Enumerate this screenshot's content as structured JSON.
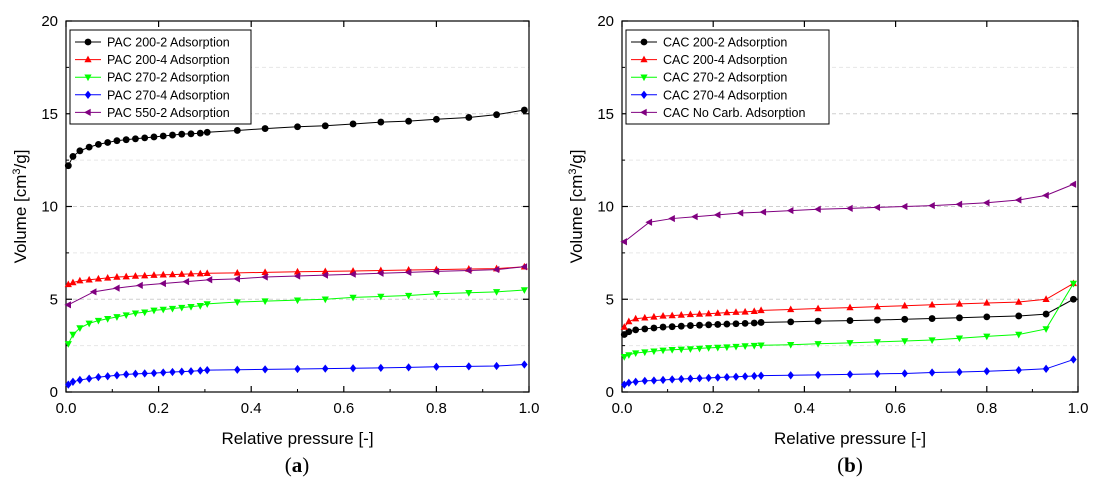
{
  "chart_data": [
    {
      "type": "line",
      "panel_label": "a",
      "xlabel": "Relative pressure [-]",
      "ylabel_main": "Volume [cm",
      "ylabel_sup": "3",
      "ylabel_tail": "/g]",
      "xlim": [
        0,
        1.0
      ],
      "ylim": [
        0,
        20
      ],
      "x_ticks": [
        "0.0",
        "0.2",
        "0.4",
        "0.6",
        "0.8",
        "1.0"
      ],
      "y_ticks": [
        "0",
        "5",
        "10",
        "15",
        "20"
      ],
      "grid": "horizontal dashed",
      "legend_position": "top-left",
      "series": [
        {
          "name": "PAC 200-2 Adsorption",
          "color": "#000000",
          "marker": "circle",
          "x": [
            0.005,
            0.015,
            0.03,
            0.05,
            0.07,
            0.09,
            0.11,
            0.13,
            0.15,
            0.17,
            0.19,
            0.21,
            0.23,
            0.25,
            0.27,
            0.29,
            0.305,
            0.37,
            0.43,
            0.5,
            0.56,
            0.62,
            0.68,
            0.74,
            0.8,
            0.87,
            0.93,
            0.99
          ],
          "y": [
            12.2,
            12.7,
            13.0,
            13.2,
            13.35,
            13.45,
            13.55,
            13.6,
            13.65,
            13.7,
            13.75,
            13.8,
            13.85,
            13.9,
            13.92,
            13.95,
            14.0,
            14.1,
            14.2,
            14.3,
            14.35,
            14.45,
            14.55,
            14.6,
            14.7,
            14.8,
            14.95,
            15.2
          ]
        },
        {
          "name": "PAC 200-4 Adsorption",
          "color": "#ff0000",
          "marker": "triangle-up",
          "x": [
            0.005,
            0.015,
            0.03,
            0.05,
            0.07,
            0.09,
            0.11,
            0.13,
            0.15,
            0.17,
            0.19,
            0.21,
            0.23,
            0.25,
            0.27,
            0.29,
            0.305,
            0.37,
            0.43,
            0.5,
            0.56,
            0.62,
            0.68,
            0.74,
            0.8,
            0.87,
            0.93,
            0.99
          ],
          "y": [
            5.8,
            5.9,
            6.0,
            6.05,
            6.1,
            6.15,
            6.2,
            6.22,
            6.25,
            6.27,
            6.3,
            6.32,
            6.33,
            6.35,
            6.37,
            6.38,
            6.4,
            6.42,
            6.45,
            6.48,
            6.5,
            6.52,
            6.55,
            6.58,
            6.6,
            6.63,
            6.65,
            6.75
          ]
        },
        {
          "name": "PAC 270-2 Adsorption",
          "color": "#00ff00",
          "marker": "triangle-down",
          "x": [
            0.005,
            0.015,
            0.03,
            0.05,
            0.07,
            0.09,
            0.11,
            0.13,
            0.15,
            0.17,
            0.19,
            0.21,
            0.23,
            0.25,
            0.27,
            0.29,
            0.305,
            0.37,
            0.43,
            0.5,
            0.56,
            0.62,
            0.68,
            0.74,
            0.8,
            0.87,
            0.93,
            0.99
          ],
          "y": [
            2.6,
            3.1,
            3.45,
            3.7,
            3.85,
            3.95,
            4.05,
            4.15,
            4.25,
            4.3,
            4.4,
            4.45,
            4.5,
            4.55,
            4.6,
            4.65,
            4.75,
            4.85,
            4.9,
            4.95,
            5.0,
            5.1,
            5.15,
            5.2,
            5.3,
            5.35,
            5.4,
            5.5
          ]
        },
        {
          "name": "PAC 270-4 Adsorption",
          "color": "#0000ff",
          "marker": "diamond",
          "x": [
            0.005,
            0.015,
            0.03,
            0.05,
            0.07,
            0.09,
            0.11,
            0.13,
            0.15,
            0.17,
            0.19,
            0.21,
            0.23,
            0.25,
            0.27,
            0.29,
            0.305,
            0.37,
            0.43,
            0.5,
            0.56,
            0.62,
            0.68,
            0.74,
            0.8,
            0.87,
            0.93,
            0.99
          ],
          "y": [
            0.4,
            0.55,
            0.65,
            0.72,
            0.8,
            0.85,
            0.9,
            0.95,
            0.98,
            1.0,
            1.02,
            1.05,
            1.08,
            1.1,
            1.12,
            1.15,
            1.18,
            1.2,
            1.22,
            1.24,
            1.26,
            1.28,
            1.3,
            1.33,
            1.36,
            1.38,
            1.4,
            1.48
          ]
        },
        {
          "name": "PAC 550-2 Adsorption",
          "color": "#800080",
          "marker": "triangle-left",
          "x": [
            0.005,
            0.06,
            0.11,
            0.16,
            0.21,
            0.26,
            0.31,
            0.37,
            0.43,
            0.5,
            0.56,
            0.62,
            0.68,
            0.74,
            0.8,
            0.87,
            0.93,
            0.99
          ],
          "y": [
            4.7,
            5.4,
            5.6,
            5.75,
            5.85,
            5.95,
            6.05,
            6.1,
            6.2,
            6.25,
            6.3,
            6.35,
            6.4,
            6.45,
            6.5,
            6.55,
            6.6,
            6.75
          ]
        }
      ]
    },
    {
      "type": "line",
      "panel_label": "b",
      "xlabel": "Relative pressure [-]",
      "ylabel_main": "Volume [cm",
      "ylabel_sup": "3",
      "ylabel_tail": "/g]",
      "xlim": [
        0,
        1.0
      ],
      "ylim": [
        0,
        20
      ],
      "x_ticks": [
        "0.0",
        "0.2",
        "0.4",
        "0.6",
        "0.8",
        "1.0"
      ],
      "y_ticks": [
        "0",
        "5",
        "10",
        "15",
        "20"
      ],
      "grid": "horizontal dashed",
      "legend_position": "top-left",
      "series": [
        {
          "name": "CAC 200-2 Adsorption",
          "color": "#000000",
          "marker": "circle",
          "x": [
            0.005,
            0.015,
            0.03,
            0.05,
            0.07,
            0.09,
            0.11,
            0.13,
            0.15,
            0.17,
            0.19,
            0.21,
            0.23,
            0.25,
            0.27,
            0.29,
            0.305,
            0.37,
            0.43,
            0.5,
            0.56,
            0.62,
            0.68,
            0.74,
            0.8,
            0.87,
            0.93,
            0.99
          ],
          "y": [
            3.1,
            3.25,
            3.35,
            3.4,
            3.45,
            3.5,
            3.52,
            3.55,
            3.58,
            3.6,
            3.62,
            3.64,
            3.66,
            3.68,
            3.7,
            3.72,
            3.75,
            3.78,
            3.82,
            3.85,
            3.88,
            3.92,
            3.96,
            4.0,
            4.05,
            4.1,
            4.2,
            5.0
          ]
        },
        {
          "name": "CAC 200-4 Adsorption",
          "color": "#ff0000",
          "marker": "triangle-up",
          "x": [
            0.005,
            0.015,
            0.03,
            0.05,
            0.07,
            0.09,
            0.11,
            0.13,
            0.15,
            0.17,
            0.19,
            0.21,
            0.23,
            0.25,
            0.27,
            0.29,
            0.305,
            0.37,
            0.43,
            0.5,
            0.56,
            0.62,
            0.68,
            0.74,
            0.8,
            0.87,
            0.93,
            0.99
          ],
          "y": [
            3.5,
            3.8,
            3.95,
            4.0,
            4.05,
            4.1,
            4.12,
            4.15,
            4.18,
            4.2,
            4.22,
            4.25,
            4.28,
            4.3,
            4.32,
            4.35,
            4.4,
            4.45,
            4.5,
            4.55,
            4.6,
            4.65,
            4.7,
            4.75,
            4.8,
            4.85,
            5.0,
            5.85
          ]
        },
        {
          "name": "CAC 270-2 Adsorption",
          "color": "#00ff00",
          "marker": "triangle-down",
          "x": [
            0.005,
            0.015,
            0.03,
            0.05,
            0.07,
            0.09,
            0.11,
            0.13,
            0.15,
            0.17,
            0.19,
            0.21,
            0.23,
            0.25,
            0.27,
            0.29,
            0.305,
            0.37,
            0.43,
            0.5,
            0.56,
            0.62,
            0.68,
            0.74,
            0.8,
            0.87,
            0.93,
            0.99
          ],
          "y": [
            1.9,
            2.0,
            2.1,
            2.15,
            2.2,
            2.25,
            2.28,
            2.3,
            2.32,
            2.35,
            2.38,
            2.4,
            2.42,
            2.45,
            2.48,
            2.5,
            2.52,
            2.55,
            2.6,
            2.65,
            2.7,
            2.75,
            2.8,
            2.9,
            3.0,
            3.1,
            3.4,
            5.85
          ]
        },
        {
          "name": "CAC 270-4 Adsorption",
          "color": "#0000ff",
          "marker": "diamond",
          "x": [
            0.005,
            0.015,
            0.03,
            0.05,
            0.07,
            0.09,
            0.11,
            0.13,
            0.15,
            0.17,
            0.19,
            0.21,
            0.23,
            0.25,
            0.27,
            0.29,
            0.305,
            0.37,
            0.43,
            0.5,
            0.56,
            0.62,
            0.68,
            0.74,
            0.8,
            0.87,
            0.93,
            0.99
          ],
          "y": [
            0.4,
            0.5,
            0.55,
            0.6,
            0.62,
            0.65,
            0.68,
            0.7,
            0.72,
            0.74,
            0.76,
            0.78,
            0.8,
            0.82,
            0.84,
            0.86,
            0.88,
            0.9,
            0.92,
            0.95,
            0.98,
            1.0,
            1.05,
            1.08,
            1.12,
            1.18,
            1.25,
            1.75
          ]
        },
        {
          "name": "CAC No Carb. Adsorption",
          "color": "#800080",
          "marker": "triangle-left",
          "x": [
            0.005,
            0.06,
            0.11,
            0.16,
            0.21,
            0.26,
            0.31,
            0.37,
            0.43,
            0.5,
            0.56,
            0.62,
            0.68,
            0.74,
            0.8,
            0.87,
            0.93,
            0.99
          ],
          "y": [
            8.1,
            9.15,
            9.35,
            9.45,
            9.55,
            9.65,
            9.7,
            9.78,
            9.85,
            9.9,
            9.95,
            10.0,
            10.05,
            10.12,
            10.2,
            10.35,
            10.6,
            11.2
          ]
        }
      ]
    }
  ]
}
